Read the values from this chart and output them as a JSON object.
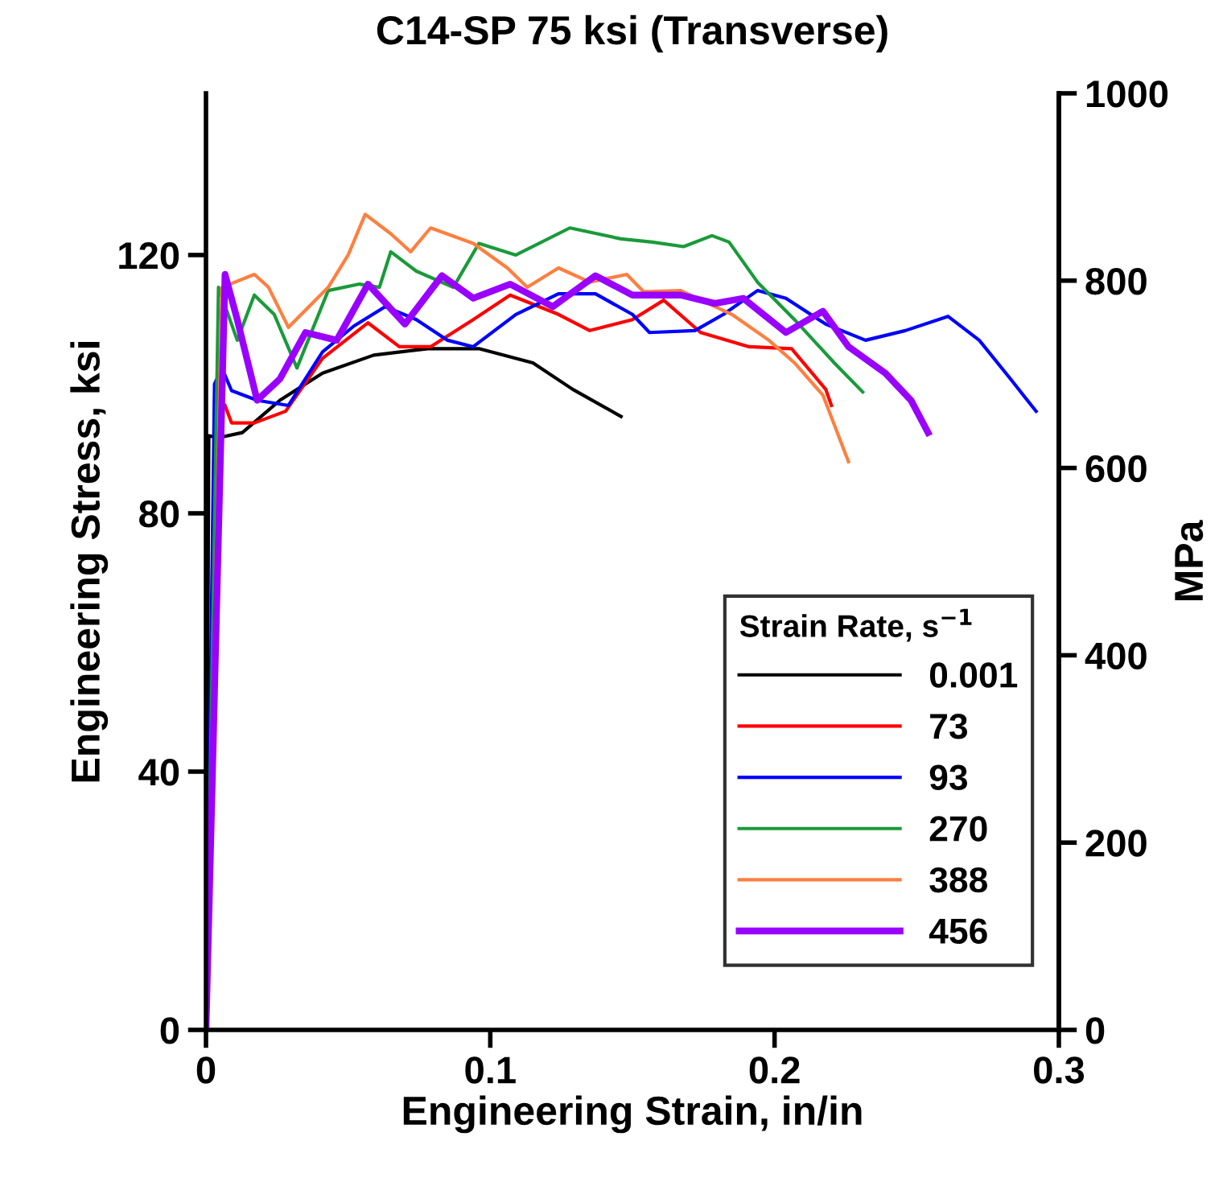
{
  "chart_data": {
    "type": "line",
    "title": "C14-SP 75 ksi (Transverse)",
    "xlabel": "Engineering Strain, in/in",
    "ylabel": "Engineering Stress, ksi",
    "y2label": "MPa",
    "legend_title": "Strain Rate, s$^{−1}$",
    "legend": "bottom right",
    "grid": false,
    "xlim": [
      0,
      0.3
    ],
    "xticks": [
      0,
      0.1,
      0.2,
      0.3
    ],
    "ylim": [
      0,
      145.04
    ],
    "yticks": [
      0,
      40,
      80,
      120
    ],
    "y2lim": [
      0,
      1000
    ],
    "y2ticks": [
      0,
      200,
      400,
      600,
      800,
      1000
    ],
    "series": [
      {
        "name": "0.001",
        "color": "#000000",
        "x": [
          0,
          0.001,
          0.0044,
          0.0128,
          0.026,
          0.041,
          0.059,
          0.078,
          0.096,
          0.115,
          0.129,
          0.146
        ],
        "values": [
          0,
          92,
          91.7,
          92.5,
          97.5,
          101.7,
          104.5,
          105.5,
          105.5,
          103.3,
          99.2,
          95
        ]
      },
      {
        "name": "73",
        "color": "#ff0000",
        "x": [
          0.0067,
          0.009,
          0.017,
          0.028,
          0.041,
          0.057,
          0.068,
          0.079,
          0.094,
          0.107,
          0.124,
          0.135,
          0.15,
          0.161,
          0.174,
          0.191,
          0.206,
          0.218,
          0.22
        ],
        "values": [
          96.7,
          94,
          94,
          95.8,
          104,
          109.5,
          105.8,
          105.8,
          110,
          113.8,
          110.8,
          108.3,
          110,
          113,
          108,
          105.8,
          105.5,
          99.2,
          96.7
        ]
      },
      {
        "name": "93",
        "color": "#0000ff",
        "x": [
          0,
          0.003,
          0.0056,
          0.009,
          0.018,
          0.029,
          0.041,
          0.052,
          0.063,
          0.074,
          0.085,
          0.094,
          0.109,
          0.124,
          0.137,
          0.15,
          0.156,
          0.172,
          0.182,
          0.194,
          0.204,
          0.218,
          0.232,
          0.246,
          0.261,
          0.272,
          0.283,
          0.292
        ],
        "values": [
          0,
          100,
          102.5,
          99,
          97.5,
          96.7,
          105,
          109,
          112,
          110,
          106.8,
          105.8,
          110.8,
          114,
          114,
          110.8,
          108,
          108.3,
          110.8,
          114.5,
          113.3,
          109.3,
          106.8,
          108.3,
          110.5,
          106.8,
          100.8,
          95.8
        ]
      },
      {
        "name": "270",
        "color": "#1a9a3a",
        "x": [
          0,
          0.0044,
          0.011,
          0.017,
          0.024,
          0.032,
          0.043,
          0.054,
          0.061,
          0.065,
          0.074,
          0.087,
          0.096,
          0.109,
          0.128,
          0.146,
          0.157,
          0.168,
          0.178,
          0.184,
          0.194,
          0.207,
          0.221,
          0.231
        ],
        "values": [
          0,
          115,
          106.8,
          113.8,
          110.8,
          102.5,
          114.5,
          115.5,
          115,
          120.5,
          117.5,
          115,
          121.8,
          120,
          124.2,
          122.5,
          122,
          121.3,
          123,
          122,
          115.8,
          110,
          103.3,
          98.8
        ]
      },
      {
        "name": "388",
        "color": "#ff7f3f",
        "x": [
          0,
          0.0056,
          0.017,
          0.022,
          0.029,
          0.043,
          0.05,
          0.056,
          0.065,
          0.072,
          0.079,
          0.094,
          0.106,
          0.113,
          0.124,
          0.135,
          0.148,
          0.154,
          0.167,
          0.185,
          0.198,
          0.207,
          0.217,
          0.226
        ],
        "values": [
          0,
          115,
          117,
          115,
          108.8,
          115,
          120,
          126.3,
          123.3,
          120.5,
          124.2,
          121.8,
          118,
          115,
          118,
          115.8,
          117,
          114.3,
          114.5,
          110.8,
          106.8,
          103.3,
          98.3,
          88
        ]
      },
      {
        "name": "456",
        "color": "#9900ff",
        "x": [
          0,
          0.0067,
          0.011,
          0.018,
          0.026,
          0.035,
          0.046,
          0.057,
          0.07,
          0.083,
          0.094,
          0.107,
          0.122,
          0.137,
          0.15,
          0.167,
          0.179,
          0.189,
          0.204,
          0.217,
          0.226,
          0.239,
          0.248,
          0.254
        ],
        "values": [
          0,
          117,
          110,
          97.5,
          100.8,
          108,
          106.8,
          115.5,
          109.3,
          116.8,
          113.3,
          115.5,
          112,
          116.8,
          113.8,
          113.8,
          112.5,
          113.3,
          108,
          111.3,
          105.8,
          101.7,
          97.5,
          92.5
        ]
      }
    ]
  }
}
